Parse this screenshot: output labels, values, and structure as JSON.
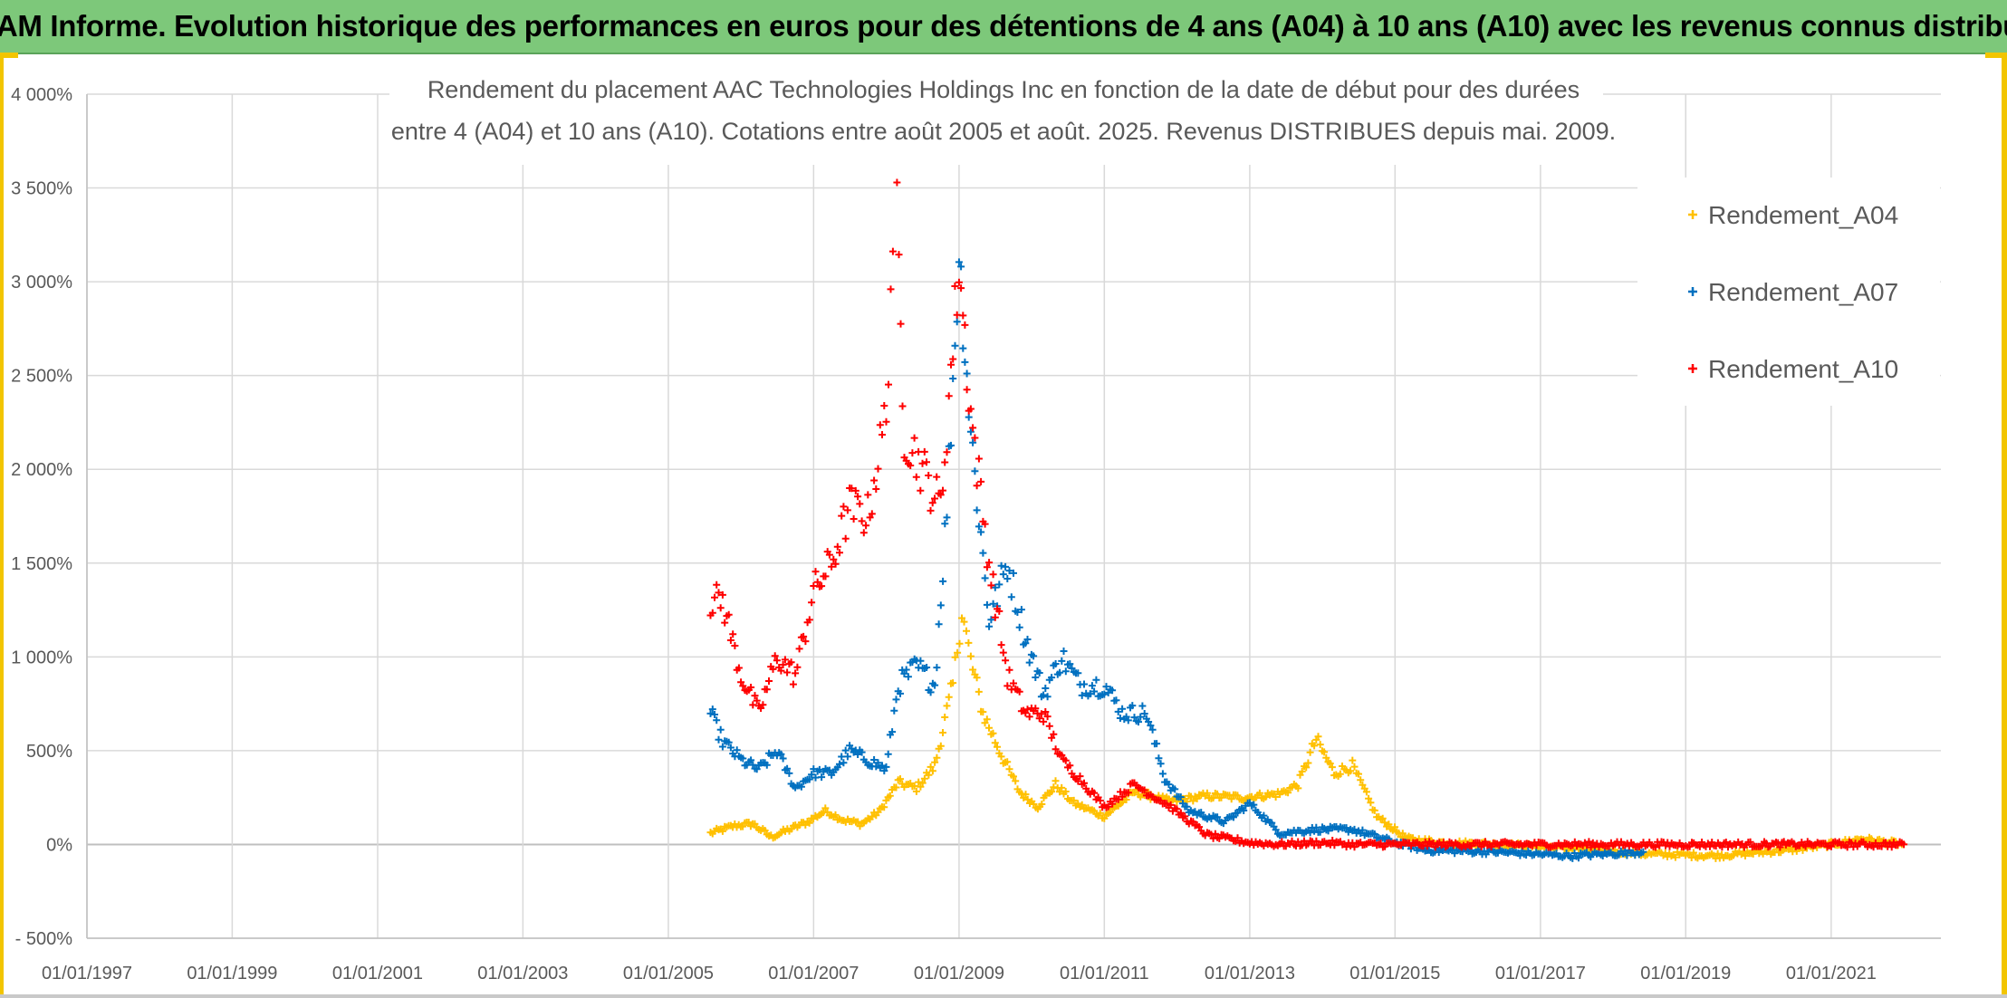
{
  "banner": {
    "title": "ADAM Informe. Evolution historique des performances en euros pour des détentions de 4 ans (A04) à 10 ans (A10) avec les revenus connus distribués"
  },
  "colors": {
    "A04": "#ffc000",
    "A07": "#0070c0",
    "A10": "#ff0000",
    "banner": "#7dc87a",
    "frame": "#f2c500",
    "grid": "#d9d9d9"
  },
  "chart_data": {
    "type": "scatter",
    "title_lines": [
      "Rendement du placement AAC Technologies Holdings Inc en fonction de la date de début pour des durées",
      "entre 4 (A04) et 10 ans (A10). Cotations entre août 2005 et août. 2025. Revenus DISTRIBUES depuis mai. 2009."
    ],
    "x_range": [
      "1997-01-01",
      "2022-01-01"
    ],
    "y_range": [
      -500,
      4000
    ],
    "x_ticks": [
      "01/01/1997",
      "01/01/1999",
      "01/01/2001",
      "01/01/2003",
      "01/01/2005",
      "01/01/2007",
      "01/01/2009",
      "01/01/2011",
      "01/01/2013",
      "01/01/2015",
      "01/01/2017",
      "01/01/2019",
      "01/01/2021"
    ],
    "y_ticks": [
      "- 500%",
      "0%",
      "500%",
      "1 000%",
      "1 500%",
      "2 000%",
      "2 500%",
      "3 000%",
      "3 500%",
      "4 000%"
    ],
    "grid": true,
    "legend_position": "right",
    "series": [
      {
        "name": "Rendement_A04",
        "color": "#ffc000",
        "points": [
          [
            "2005-08-01",
            60
          ],
          [
            "2005-12-01",
            100
          ],
          [
            "2006-03-01",
            110
          ],
          [
            "2006-06-01",
            40
          ],
          [
            "2006-09-01",
            80
          ],
          [
            "2006-12-01",
            120
          ],
          [
            "2007-03-01",
            180
          ],
          [
            "2007-06-01",
            130
          ],
          [
            "2007-09-01",
            110
          ],
          [
            "2007-12-01",
            180
          ],
          [
            "2008-03-01",
            330
          ],
          [
            "2008-06-01",
            300
          ],
          [
            "2008-09-01",
            420
          ],
          [
            "2008-12-01",
            850
          ],
          [
            "2009-01-15",
            1250
          ],
          [
            "2009-03-01",
            980
          ],
          [
            "2009-05-01",
            700
          ],
          [
            "2009-08-01",
            480
          ],
          [
            "2009-11-01",
            280
          ],
          [
            "2010-02-01",
            200
          ],
          [
            "2010-05-01",
            320
          ],
          [
            "2010-08-01",
            220
          ],
          [
            "2011-01-01",
            150
          ],
          [
            "2011-06-01",
            280
          ],
          [
            "2011-12-01",
            230
          ],
          [
            "2012-06-01",
            260
          ],
          [
            "2012-12-01",
            250
          ],
          [
            "2013-06-01",
            270
          ],
          [
            "2013-09-01",
            320
          ],
          [
            "2013-12-01",
            560
          ],
          [
            "2014-03-01",
            380
          ],
          [
            "2014-06-01",
            420
          ],
          [
            "2014-10-01",
            150
          ],
          [
            "2015-03-01",
            30
          ],
          [
            "2015-09-01",
            10
          ],
          [
            "2016-06-01",
            0
          ],
          [
            "2017-06-01",
            -20
          ],
          [
            "2018-06-01",
            -50
          ],
          [
            "2019-06-01",
            -60
          ],
          [
            "2020-06-01",
            -30
          ],
          [
            "2021-01-01",
            0
          ],
          [
            "2021-06-01",
            30
          ],
          [
            "2022-01-01",
            0
          ]
        ]
      },
      {
        "name": "Rendement_A07",
        "color": "#0070c0",
        "points": [
          [
            "2005-08-01",
            700
          ],
          [
            "2005-10-01",
            550
          ],
          [
            "2006-01-01",
            450
          ],
          [
            "2006-04-01",
            400
          ],
          [
            "2006-07-01",
            500
          ],
          [
            "2006-10-01",
            300
          ],
          [
            "2007-01-01",
            380
          ],
          [
            "2007-04-01",
            380
          ],
          [
            "2007-07-01",
            500
          ],
          [
            "2007-10-01",
            450
          ],
          [
            "2008-01-01",
            400
          ],
          [
            "2008-03-01",
            850
          ],
          [
            "2008-06-01",
            950
          ],
          [
            "2008-09-01",
            850
          ],
          [
            "2008-11-01",
            1800
          ],
          [
            "2009-01-01",
            3150
          ],
          [
            "2009-03-01",
            2200
          ],
          [
            "2009-06-01",
            1200
          ],
          [
            "2009-09-01",
            1500
          ],
          [
            "2009-12-01",
            1100
          ],
          [
            "2010-03-01",
            800
          ],
          [
            "2010-06-01",
            1000
          ],
          [
            "2010-09-01",
            850
          ],
          [
            "2011-01-01",
            850
          ],
          [
            "2011-04-01",
            700
          ],
          [
            "2011-08-01",
            700
          ],
          [
            "2011-11-01",
            350
          ],
          [
            "2012-03-01",
            180
          ],
          [
            "2012-09-01",
            120
          ],
          [
            "2013-01-01",
            220
          ],
          [
            "2013-06-01",
            60
          ],
          [
            "2013-12-01",
            80
          ],
          [
            "2014-06-01",
            80
          ],
          [
            "2014-12-01",
            20
          ],
          [
            "2015-06-01",
            -30
          ],
          [
            "2016-06-01",
            -40
          ],
          [
            "2017-06-01",
            -60
          ],
          [
            "2018-06-01",
            -40
          ]
        ]
      },
      {
        "name": "Rendement_A10",
        "color": "#ff0000",
        "points": [
          [
            "2005-08-01",
            1300
          ],
          [
            "2005-10-01",
            1300
          ],
          [
            "2006-01-01",
            900
          ],
          [
            "2006-04-01",
            700
          ],
          [
            "2006-07-01",
            1000
          ],
          [
            "2006-10-01",
            900
          ],
          [
            "2007-01-01",
            1350
          ],
          [
            "2007-04-01",
            1500
          ],
          [
            "2007-07-01",
            1800
          ],
          [
            "2007-10-01",
            1750
          ],
          [
            "2008-01-01",
            2300
          ],
          [
            "2008-02-15",
            3600
          ],
          [
            "2008-04-01",
            2200
          ],
          [
            "2008-07-01",
            2000
          ],
          [
            "2008-10-01",
            1800
          ],
          [
            "2009-01-01",
            3100
          ],
          [
            "2009-03-01",
            2300
          ],
          [
            "2009-06-01",
            1500
          ],
          [
            "2009-09-01",
            900
          ],
          [
            "2009-12-01",
            700
          ],
          [
            "2010-03-01",
            700
          ],
          [
            "2010-06-01",
            450
          ],
          [
            "2010-09-01",
            350
          ],
          [
            "2011-01-01",
            200
          ],
          [
            "2011-06-01",
            320
          ],
          [
            "2011-12-01",
            200
          ],
          [
            "2012-06-01",
            50
          ],
          [
            "2013-01-01",
            10
          ],
          [
            "2013-06-01",
            0
          ],
          [
            "2014-01-01",
            10
          ],
          [
            "2014-06-01",
            0
          ],
          [
            "2015-01-01",
            0
          ],
          [
            "2016-01-01",
            0
          ],
          [
            "2017-01-01",
            0
          ],
          [
            "2018-01-01",
            0
          ],
          [
            "2019-01-01",
            0
          ],
          [
            "2020-01-01",
            0
          ],
          [
            "2021-01-01",
            0
          ],
          [
            "2022-01-01",
            0
          ]
        ]
      }
    ]
  }
}
